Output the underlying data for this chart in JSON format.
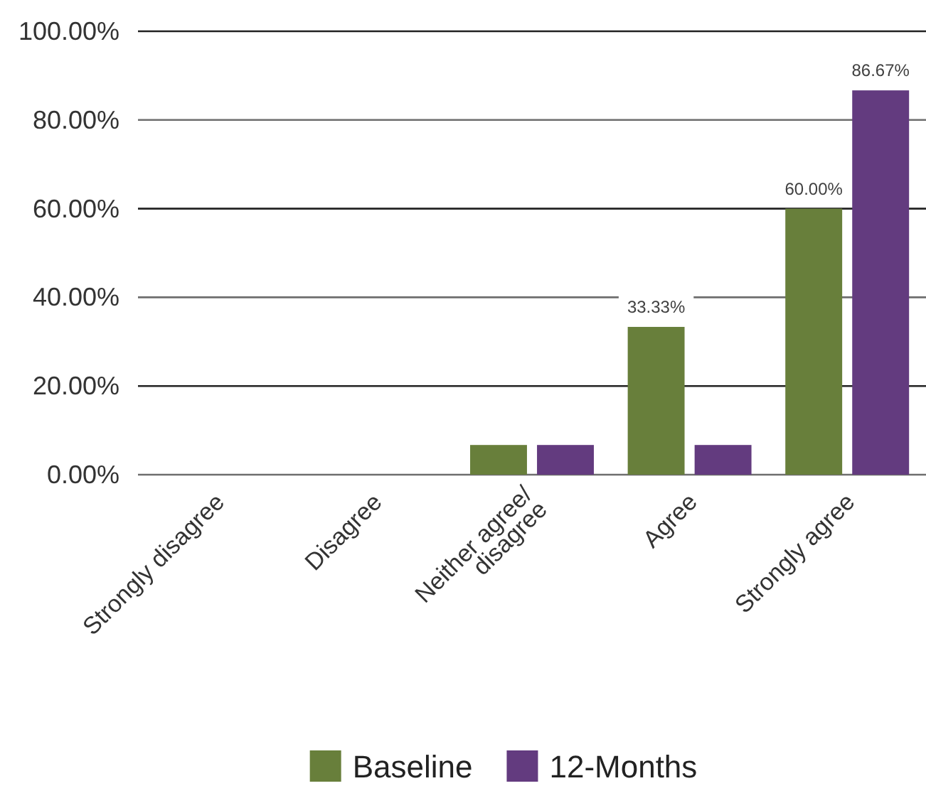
{
  "chart_data": {
    "type": "bar",
    "categories": [
      "Strongly disagree",
      "Disagree",
      "Neither agree/\ndisagree",
      "Agree",
      "Strongly agree"
    ],
    "series": [
      {
        "name": "Baseline",
        "color": "#687f3b",
        "values": [
          0,
          0,
          6.7,
          33.33,
          60.0
        ],
        "value_labels": [
          null,
          null,
          null,
          "33.33%",
          "60.00%"
        ]
      },
      {
        "name": "12-Months",
        "color": "#633b7f",
        "values": [
          0,
          0,
          6.7,
          6.7,
          86.67
        ],
        "value_labels": [
          null,
          null,
          null,
          null,
          "86.67%"
        ]
      }
    ],
    "ylim": [
      0,
      100
    ],
    "yticks": [
      {
        "value": 0,
        "label": "0.00%"
      },
      {
        "value": 20,
        "label": "20.00%"
      },
      {
        "value": 40,
        "label": "40.00%"
      },
      {
        "value": 60,
        "label": "60.00%"
      },
      {
        "value": 80,
        "label": "80.00%"
      },
      {
        "value": 100,
        "label": "100.00%"
      }
    ],
    "grid": "y",
    "legend": "bottom"
  }
}
